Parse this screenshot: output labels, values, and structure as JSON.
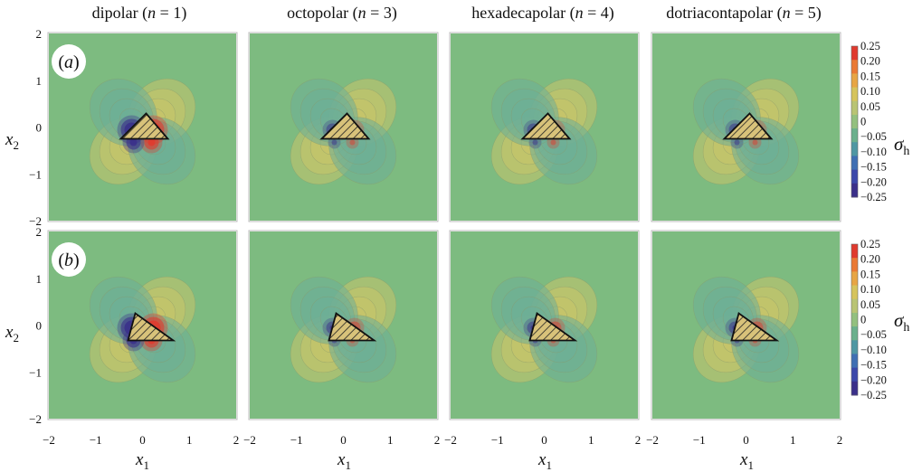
{
  "columns": [
    {
      "name": "dipolar",
      "n_label": "n",
      "n_value": "1",
      "n": 1
    },
    {
      "name": "octopolar",
      "n_label": "n",
      "n_value": "3",
      "n": 3
    },
    {
      "name": "hexadecapolar",
      "n_label": "n",
      "n_value": "4",
      "n": 4
    },
    {
      "name": "dotriacontapolar",
      "n_label": "n",
      "n_value": "5",
      "n": 5
    }
  ],
  "rows": [
    {
      "panel_label": "a",
      "triangle": "isosceles"
    },
    {
      "panel_label": "b",
      "triangle": "right-angled"
    }
  ],
  "axes": {
    "x_label": "x",
    "x_sub": "1",
    "y_label": "x",
    "y_sub": "2",
    "x_ticks": [
      "−2",
      "−1",
      "0",
      "1",
      "2"
    ],
    "y_ticks": [
      "2",
      "1",
      "0",
      "−1",
      "−2"
    ],
    "range": [
      -2,
      2
    ]
  },
  "colorbar": {
    "title": "σ",
    "title_sub": "h",
    "ticks": [
      "0.25",
      "0.20",
      "0.15",
      "0.10",
      "0.05",
      "0",
      "−0.05",
      "−0.10",
      "−0.15",
      "−0.20",
      "−0.25"
    ],
    "colors": [
      "#e03a2e",
      "#ea7a35",
      "#e7a544",
      "#d6c45c",
      "#b9c474",
      "#93c07f",
      "#6bb08d",
      "#4f97a3",
      "#3f6fb3",
      "#3b48aa",
      "#3a2f8a"
    ]
  },
  "colors": {
    "background_field": "#7dbb80",
    "positive_strong": "#e03a2e",
    "negative_strong": "#3a2f8a",
    "inclusion_fill": "#d8c27a"
  }
}
